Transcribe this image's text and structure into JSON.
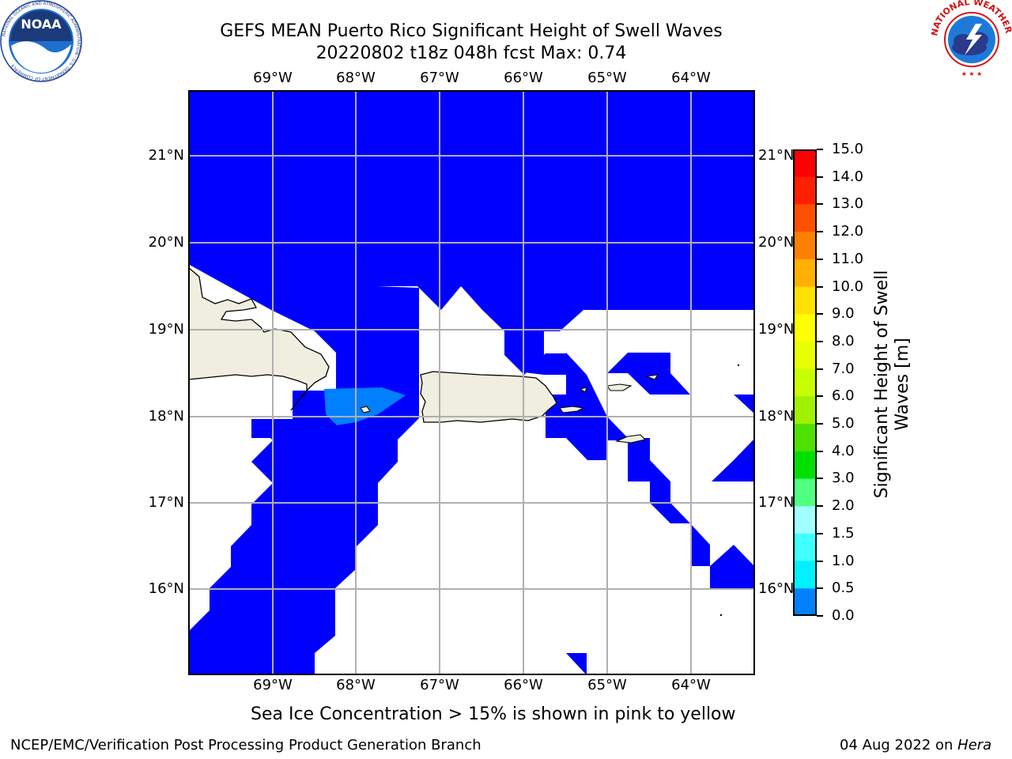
{
  "header": {
    "title_line1": "GEFS MEAN Puerto Rico Significant Height of Swell Waves",
    "title_line2": "20220802 t18z 048h fcst   Max: 0.74"
  },
  "map": {
    "lon_ticks": [
      "69°W",
      "68°W",
      "67°W",
      "66°W",
      "65°W",
      "64°W"
    ],
    "lat_ticks": [
      "21°N",
      "20°N",
      "19°N",
      "18°N",
      "17°N",
      "16°N"
    ],
    "ocean_color": "#0000ff",
    "land_color": "#efeedf",
    "nodata_color": "#ffffff"
  },
  "colorbar": {
    "title_line1": "Significant Height of Swell",
    "title_line2": "Waves [m]",
    "labels": [
      "15.0",
      "14.0",
      "13.0",
      "12.0",
      "11.0",
      "10.0",
      "9.0",
      "8.0",
      "7.0",
      "6.0",
      "5.0",
      "4.0",
      "3.0",
      "2.0",
      "1.5",
      "1.0",
      "0.5",
      "0.0"
    ],
    "colors_top_to_bottom": [
      "#ff0000",
      "#ff2000",
      "#ff5000",
      "#ff8000",
      "#ffb000",
      "#ffe000",
      "#ffff00",
      "#e8ff00",
      "#c8ff00",
      "#a0f000",
      "#50e000",
      "#00e000",
      "#50ff80",
      "#a0ffff",
      "#40ffff",
      "#00f0ff",
      "#0080ff",
      "#0000ff"
    ]
  },
  "note": "Sea Ice Concentration > 15% is shown in pink to yellow",
  "footer": {
    "left": "NCEP/EMC/Verification Post Processing Product Generation Branch",
    "right_date": "04 Aug 2022 on ",
    "right_host": "Hera"
  },
  "logos": {
    "noaa_text": "NOAA",
    "noaa_ring": "NATIONAL OCEANIC AND ATMOSPHERIC ADMINISTRATION · U.S. DEPARTMENT OF COMMERCE",
    "nws_ring": "NATIONAL WEATHER SERVICE"
  }
}
